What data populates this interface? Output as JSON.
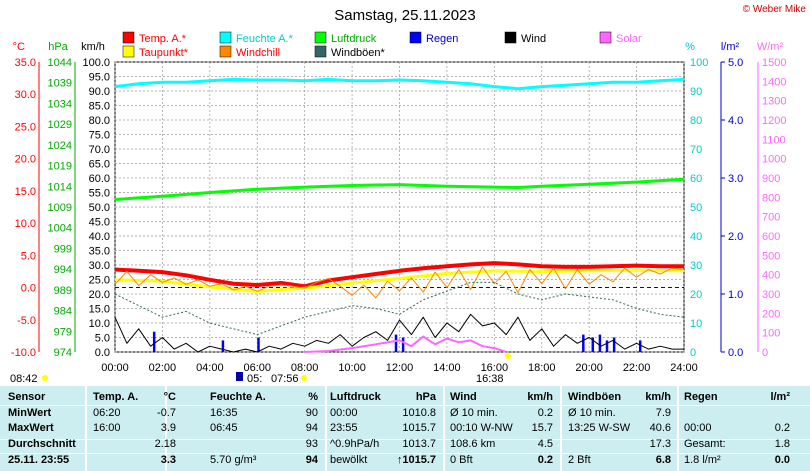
{
  "title": "Samstag, 25.11.2023",
  "copyright": "© Weber Mike",
  "chart_data": {
    "type": "line",
    "x_ticks": [
      "00:00",
      "02:00",
      "04:00",
      "06:00",
      "08:00",
      "10:00",
      "12:00",
      "14:00",
      "16:00",
      "18:00",
      "20:00",
      "22:00",
      "24:00"
    ],
    "axes": {
      "temp_c": {
        "label": "°C",
        "color": "#ff0000",
        "min": -10,
        "max": 35,
        "ticks": [
          "35.0",
          "30.0",
          "25.0",
          "20.0",
          "15.0",
          "10.0",
          "5.0",
          "0.0",
          "-5.0",
          "-10.0"
        ]
      },
      "press_hpa": {
        "label": "hPa",
        "color": "#00aa00",
        "min": 974,
        "max": 1044,
        "ticks": [
          "1044",
          "1039",
          "1034",
          "1029",
          "1024",
          "1019",
          "1014",
          "1009",
          "1004",
          "999",
          "994",
          "989",
          "984",
          "979",
          "974"
        ]
      },
      "wind_kmh": {
        "label": "km/h",
        "color": "#000000",
        "min": 0,
        "max": 100,
        "ticks": [
          "100.0",
          "95.0",
          "90.0",
          "85.0",
          "80.0",
          "75.0",
          "70.0",
          "65.0",
          "60.0",
          "55.0",
          "50.0",
          "45.0",
          "40.0",
          "35.0",
          "30.0",
          "25.0",
          "20.0",
          "15.0",
          "10.0",
          "5.0",
          "0.0"
        ]
      },
      "hum_pct": {
        "label": "%",
        "color": "#00cccc",
        "min": 0,
        "max": 100,
        "ticks": [
          "100",
          "90",
          "80",
          "70",
          "60",
          "50",
          "40",
          "30",
          "20",
          "10",
          "0"
        ]
      },
      "rain_lm2": {
        "label": "l/m²",
        "color": "#0000cc",
        "min": 0,
        "max": 5,
        "ticks": [
          "5.0",
          "4.0",
          "3.0",
          "2.0",
          "1.0",
          "0.0"
        ]
      },
      "solar_wm2": {
        "label": "W/m²",
        "color": "#ff66ff",
        "min": 0,
        "max": 1500,
        "ticks": [
          "1500",
          "1400",
          "1300",
          "1200",
          "1100",
          "1000",
          "900",
          "800",
          "700",
          "600",
          "500",
          "400",
          "300",
          "200",
          "100",
          "0"
        ]
      }
    },
    "legend": [
      {
        "label": "Temp. A.*",
        "color": "#ff0000",
        "text_color": "#ff0000"
      },
      {
        "label": "Feuchte A.*",
        "color": "#00ffff",
        "text_color": "#00cccc"
      },
      {
        "label": "Luftdruck",
        "color": "#00ff00",
        "text_color": "#00aa00"
      },
      {
        "label": "Regen",
        "color": "#0000ff",
        "text_color": "#0000cc"
      },
      {
        "label": "Wind",
        "color": "#000000",
        "text_color": "#000000"
      },
      {
        "label": "Solar",
        "color": "#ff66ff",
        "text_color": "#ff66ff"
      },
      {
        "label": "Taupunkt*",
        "color": "#ffff00",
        "text_color": "#ff0000"
      },
      {
        "label": "Windchill",
        "color": "#ff8800",
        "text_color": "#ff0000"
      },
      {
        "label": "Windböen*",
        "color": "#336666",
        "text_color": "#000000"
      }
    ],
    "series": [
      {
        "name": "Temp. A.*",
        "axis": "temp_c",
        "color": "#ff0000",
        "width": 4,
        "x": [
          0,
          1,
          2,
          3,
          4,
          5,
          6,
          7,
          8,
          9,
          10,
          11,
          12,
          13,
          14,
          15,
          16,
          17,
          18,
          19,
          20,
          21,
          22,
          23,
          24
        ],
        "values": [
          2.8,
          2.6,
          2.4,
          1.9,
          1.2,
          0.6,
          0.4,
          0.7,
          0.2,
          1.1,
          1.6,
          2.1,
          2.6,
          3.0,
          3.3,
          3.6,
          3.8,
          3.6,
          3.3,
          3.2,
          3.2,
          3.3,
          3.4,
          3.3,
          3.3
        ]
      },
      {
        "name": "Taupunkt*",
        "axis": "temp_c",
        "color": "#ffff00",
        "width": 3,
        "x": [
          0,
          2,
          4,
          6,
          7,
          8,
          10,
          12,
          14,
          16,
          18,
          20,
          22,
          24
        ],
        "values": [
          1.2,
          1.0,
          0.1,
          -0.6,
          -0.3,
          -0.1,
          0.7,
          1.4,
          2.2,
          2.6,
          2.5,
          2.6,
          2.7,
          2.6
        ]
      },
      {
        "name": "Feuchte A.*",
        "axis": "hum_pct",
        "color": "#00ffff",
        "width": 3,
        "x": [
          0,
          1,
          2,
          3,
          4,
          5,
          6,
          7,
          8,
          9,
          10,
          11,
          12,
          13,
          14,
          15,
          16,
          17,
          18,
          19,
          20,
          21,
          22,
          23,
          24
        ],
        "values": [
          91.5,
          92.5,
          93,
          93,
          93.5,
          94,
          93.8,
          93.8,
          93.5,
          94,
          93.5,
          93.5,
          93.8,
          93.5,
          93,
          92.5,
          91.5,
          90.8,
          91.5,
          92,
          92.5,
          93,
          93,
          93.5,
          94
        ]
      },
      {
        "name": "Luftdruck",
        "axis": "press_hpa",
        "color": "#00ff00",
        "width": 3,
        "x": [
          0,
          2,
          4,
          6,
          8,
          10,
          12,
          14,
          16,
          17,
          18,
          20,
          22,
          24
        ],
        "values": [
          1010.8,
          1011.6,
          1012.5,
          1013.3,
          1013.8,
          1014.2,
          1014.4,
          1014.0,
          1013.8,
          1013.7,
          1014.0,
          1014.5,
          1015.0,
          1015.7
        ]
      },
      {
        "name": "Windchill",
        "axis": "temp_c",
        "color": "#ff8800",
        "width": 1,
        "x": [
          0,
          0.5,
          1,
          1.5,
          2,
          2.5,
          3,
          3.5,
          4,
          4.5,
          5,
          5.5,
          6,
          6.5,
          7,
          7.5,
          8,
          8.5,
          9,
          9.5,
          10,
          10.5,
          11,
          11.5,
          12,
          12.5,
          13,
          13.5,
          14,
          14.5,
          15,
          15.5,
          16,
          16.5,
          17,
          17.5,
          18,
          18.5,
          19,
          19.5,
          20,
          20.5,
          21,
          21.5,
          22,
          22.5,
          23,
          23.5,
          24
        ],
        "values": [
          0.5,
          2.5,
          0.3,
          2.0,
          0.8,
          1.5,
          0.5,
          1.2,
          0.2,
          0.6,
          -0.4,
          0.2,
          -0.6,
          0.2,
          0.4,
          0.2,
          -0.1,
          0.8,
          1.4,
          0.2,
          -1.2,
          0.4,
          -1.6,
          1.0,
          -0.5,
          1.5,
          -0.7,
          2.4,
          0.0,
          2.8,
          -0.3,
          3.2,
          0.6,
          2.5,
          -0.8,
          2.8,
          0.6,
          3.0,
          -0.2,
          2.8,
          0.5,
          2.0,
          0.9,
          3.0,
          1.6,
          2.8,
          2.1,
          3.0,
          2.8
        ]
      },
      {
        "name": "Windböen*",
        "axis": "wind_kmh",
        "color": "#336666",
        "width": 1,
        "dashed": true,
        "x": [
          0,
          1,
          2,
          3,
          4,
          5,
          6,
          7,
          8,
          9,
          10,
          11,
          12,
          13,
          14,
          15,
          16,
          17,
          18,
          19,
          20,
          21,
          22,
          23,
          24
        ],
        "values": [
          20,
          16,
          12,
          14,
          10,
          8,
          6,
          9,
          12,
          14,
          16,
          15,
          13,
          18,
          21,
          24,
          24,
          20,
          18,
          20,
          19,
          18,
          15,
          13,
          12
        ]
      },
      {
        "name": "Wind",
        "axis": "wind_kmh",
        "color": "#000000",
        "width": 1,
        "x": [
          0,
          0.5,
          1,
          1.5,
          2,
          2.5,
          3,
          3.5,
          4,
          4.5,
          5,
          5.5,
          6,
          6.5,
          7,
          7.5,
          8,
          8.5,
          9,
          9.5,
          10,
          10.5,
          11,
          11.5,
          12,
          12.5,
          13,
          13.5,
          14,
          14.5,
          15,
          15.5,
          16,
          16.5,
          17,
          17.5,
          18,
          18.5,
          19,
          19.5,
          20,
          20.5,
          21,
          21.5,
          22,
          22.5,
          23,
          23.5,
          24
        ],
        "values": [
          12,
          3,
          8,
          2,
          5,
          1,
          3,
          0,
          2,
          1,
          0,
          1,
          0,
          2,
          1,
          3,
          2,
          4,
          3,
          6,
          2,
          5,
          7,
          4,
          11,
          6,
          12,
          5,
          10,
          7,
          13,
          9,
          10,
          6,
          12,
          4,
          8,
          2,
          6,
          3,
          5,
          2,
          4,
          1,
          3,
          1,
          2,
          1,
          1
        ]
      },
      {
        "name": "Solar",
        "axis": "solar_wm2",
        "color": "#ff66ff",
        "width": 2,
        "x": [
          8,
          9,
          10,
          11,
          12,
          12.5,
          13,
          13.5,
          14,
          14.5,
          15,
          15.5,
          16,
          16.5
        ],
        "values": [
          0,
          5,
          20,
          40,
          60,
          30,
          80,
          40,
          70,
          50,
          60,
          30,
          20,
          0
        ]
      }
    ],
    "stats": {
      "headers": [
        "Sensor",
        "Temp. A.",
        "°C",
        "Feuchte A.",
        "%",
        "Luftdruck",
        "hPa",
        "Wind",
        "km/h",
        "Windböen",
        "km/h",
        "Regen",
        "l/m²"
      ],
      "rows": [
        [
          "MinWert",
          "06:20",
          "-0.7",
          "16:35",
          "90",
          "00:00",
          "1010.8",
          "Ø 10 min.",
          "0.2",
          "Ø 10 min.",
          "7.9",
          "",
          ""
        ],
        [
          "MaxWert",
          "16:00",
          "3.9",
          "06:45",
          "94",
          "23:55",
          "1015.7",
          "00:10   W-NW",
          "15.7",
          "13:25   W-SW",
          "40.6",
          "00:00",
          "0.2"
        ],
        [
          "Durchschnitt",
          "",
          "2.18",
          "",
          "93",
          "^0.9hPa/h",
          "1013.7",
          "108.6 km",
          "4.5",
          "",
          "17.3",
          "Gesamt:",
          "1.8"
        ],
        [
          "25.11. 23:55",
          "",
          "3.3",
          "5.70 g/m³",
          "94",
          "bewölkt",
          "↑1015.7",
          "0 Bft",
          "0.2",
          "2 Bft",
          "6.8",
          "1.8 l/m²",
          "0.0"
        ]
      ]
    },
    "footer": {
      "sunrise": "08:42",
      "moon": "07:56",
      "moon_prefix": "05:",
      "sunset": "16:38"
    }
  }
}
